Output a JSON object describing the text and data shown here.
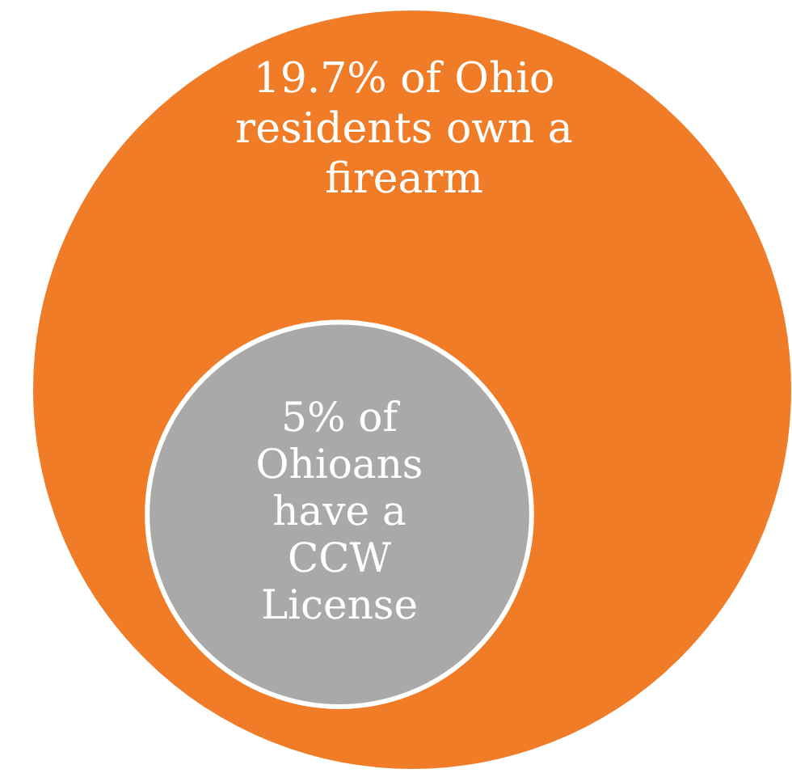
{
  "chart_data": {
    "type": "other",
    "categories": [
      "of Ohio residents own a firearm",
      "of Ohioans have a CCW License"
    ],
    "values": [
      19.7,
      5
    ],
    "value_labels": [
      "19.7%",
      "5%"
    ],
    "colors": [
      "#f07c28",
      "#a9a9a9"
    ]
  }
}
